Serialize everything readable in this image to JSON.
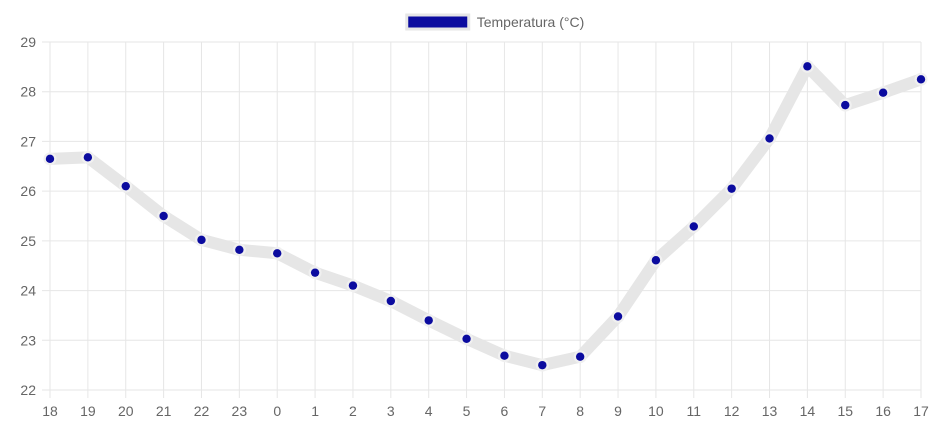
{
  "chart_data": {
    "type": "line",
    "x": [
      "18",
      "19",
      "20",
      "21",
      "22",
      "23",
      "0",
      "1",
      "2",
      "3",
      "4",
      "5",
      "6",
      "7",
      "8",
      "9",
      "10",
      "11",
      "12",
      "13",
      "14",
      "15",
      "16",
      "17"
    ],
    "series": [
      {
        "name": "Temperatura (°C)",
        "values": [
          26.65,
          26.68,
          26.1,
          25.5,
          25.02,
          24.82,
          24.75,
          24.36,
          24.1,
          23.79,
          23.4,
          23.03,
          22.69,
          22.5,
          22.67,
          23.48,
          24.61,
          25.29,
          26.05,
          27.06,
          28.51,
          27.73,
          27.98,
          28.25
        ]
      }
    ],
    "title": "",
    "xlabel": "",
    "ylabel": "",
    "ylim": [
      22,
      29
    ],
    "yticks": [
      "22",
      "23",
      "24",
      "25",
      "26",
      "27",
      "28",
      "29"
    ],
    "grid": true,
    "legend_position": "top",
    "colors": {
      "line": "#e6e6e6",
      "point": "#0b0b9f",
      "legend_box": "#0b0b9f",
      "grid": "#e6e6e6",
      "text": "#666666"
    }
  }
}
